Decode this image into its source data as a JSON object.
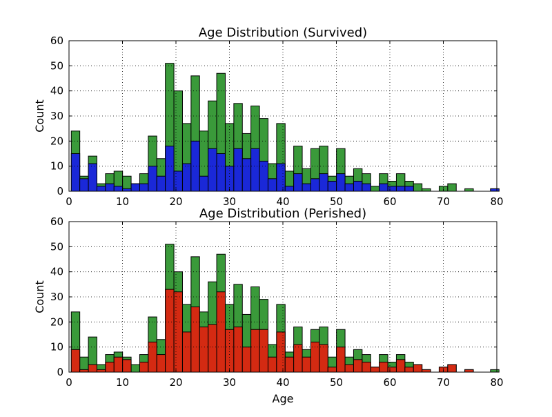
{
  "colors": {
    "total": "#3a9a3a",
    "survived": "#1a28d8",
    "perished": "#d42a12",
    "edge": "#000000",
    "grid": "#000000"
  },
  "chart_data": [
    {
      "type": "bar",
      "title": "Age Distribution (Survived)",
      "xlabel": "",
      "ylabel": "Count",
      "xlim": [
        0,
        80
      ],
      "ylim": [
        0,
        60
      ],
      "xticks": [
        0,
        10,
        20,
        30,
        40,
        50,
        60,
        70,
        80
      ],
      "yticks": [
        0,
        10,
        20,
        30,
        40,
        50,
        60
      ],
      "grid": true,
      "bin_width": 1.6,
      "bin_starts": [
        0.42,
        2.02,
        3.62,
        5.22,
        6.82,
        8.42,
        10.02,
        11.62,
        13.22,
        14.82,
        16.42,
        18.02,
        19.62,
        21.22,
        22.82,
        24.42,
        26.02,
        27.62,
        29.22,
        30.82,
        32.42,
        34.02,
        35.62,
        37.22,
        38.82,
        40.42,
        42.02,
        43.62,
        45.22,
        46.82,
        48.42,
        50.02,
        51.62,
        53.22,
        54.82,
        56.42,
        58.02,
        59.62,
        61.22,
        62.82,
        64.42,
        66.02,
        67.62,
        69.22,
        70.82,
        72.42,
        74.02,
        75.62,
        77.22,
        78.82
      ],
      "series": [
        {
          "name": "",
          "role": "total",
          "values": [
            24,
            6,
            14,
            3,
            7,
            8,
            6,
            3,
            7,
            22,
            13,
            51,
            40,
            27,
            46,
            24,
            36,
            47,
            27,
            35,
            23,
            34,
            29,
            11,
            27,
            8,
            18,
            9,
            17,
            18,
            6,
            17,
            6,
            9,
            7,
            2,
            7,
            4,
            7,
            4,
            3,
            1,
            0,
            2,
            3,
            0,
            1,
            0,
            0,
            1
          ]
        },
        {
          "name": "",
          "role": "survived",
          "values": [
            15,
            5,
            11,
            2,
            3,
            2,
            1,
            3,
            3,
            10,
            6,
            18,
            8,
            11,
            20,
            6,
            17,
            15,
            10,
            17,
            13,
            17,
            12,
            5,
            11,
            2,
            7,
            3,
            5,
            7,
            4,
            7,
            3,
            4,
            3,
            0,
            3,
            2,
            2,
            2,
            0,
            0,
            0,
            0,
            0,
            0,
            0,
            0,
            0,
            1
          ]
        }
      ]
    },
    {
      "type": "bar",
      "title": "Age Distribution (Perished)",
      "xlabel": "Age",
      "ylabel": "Count",
      "xlim": [
        0,
        80
      ],
      "ylim": [
        0,
        60
      ],
      "xticks": [
        0,
        10,
        20,
        30,
        40,
        50,
        60,
        70,
        80
      ],
      "yticks": [
        0,
        10,
        20,
        30,
        40,
        50,
        60
      ],
      "grid": true,
      "bin_width": 1.6,
      "bin_starts": [
        0.42,
        2.02,
        3.62,
        5.22,
        6.82,
        8.42,
        10.02,
        11.62,
        13.22,
        14.82,
        16.42,
        18.02,
        19.62,
        21.22,
        22.82,
        24.42,
        26.02,
        27.62,
        29.22,
        30.82,
        32.42,
        34.02,
        35.62,
        37.22,
        38.82,
        40.42,
        42.02,
        43.62,
        45.22,
        46.82,
        48.42,
        50.02,
        51.62,
        53.22,
        54.82,
        56.42,
        58.02,
        59.62,
        61.22,
        62.82,
        64.42,
        66.02,
        67.62,
        69.22,
        70.82,
        72.42,
        74.02,
        75.62,
        77.22,
        78.82
      ],
      "series": [
        {
          "name": "",
          "role": "total",
          "values": [
            24,
            6,
            14,
            3,
            7,
            8,
            6,
            3,
            7,
            22,
            13,
            51,
            40,
            27,
            46,
            24,
            36,
            47,
            27,
            35,
            23,
            34,
            29,
            11,
            27,
            8,
            18,
            9,
            17,
            18,
            6,
            17,
            6,
            9,
            7,
            2,
            7,
            4,
            7,
            4,
            3,
            1,
            0,
            2,
            3,
            0,
            1,
            0,
            0,
            1
          ]
        },
        {
          "name": "",
          "role": "perished",
          "values": [
            9,
            1,
            3,
            1,
            4,
            6,
            5,
            0,
            4,
            12,
            7,
            33,
            32,
            16,
            26,
            18,
            19,
            32,
            17,
            18,
            10,
            17,
            17,
            6,
            16,
            6,
            11,
            6,
            12,
            11,
            2,
            10,
            3,
            5,
            4,
            2,
            4,
            2,
            5,
            2,
            3,
            1,
            0,
            2,
            3,
            0,
            1,
            0,
            0,
            0
          ]
        }
      ]
    }
  ]
}
